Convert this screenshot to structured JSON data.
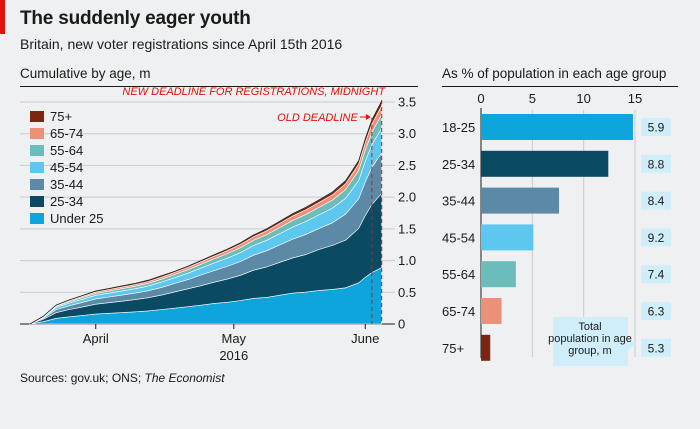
{
  "header": {
    "title": "The suddenly eager youth",
    "subtitle": "Britain, new voter registrations since April 15th 2016"
  },
  "source": {
    "prefix": "Sources: gov.uk; ONS; ",
    "publication": "The Economist"
  },
  "colors": {
    "accent": "#e3120b",
    "under25": "#0ea5dc",
    "a25_34": "#0b4a63",
    "a35_44": "#5c8aa6",
    "a45_54": "#5ec7ef",
    "a55_64": "#6dbcbc",
    "a65_74": "#ec9078",
    "a75plus": "#7d2412",
    "total_box": "#cfeef9"
  },
  "chart_data": [
    {
      "type": "area",
      "stacked": true,
      "title": "Cumulative by age, m",
      "xlabel": "2016",
      "ylabel": "",
      "ylim": [
        0,
        3.5
      ],
      "y_ticks": [
        "0",
        "0.5",
        "1.0",
        "1.5",
        "2.0",
        "2.5",
        "3.0",
        "3.5"
      ],
      "x_ticks": [
        "April",
        "May",
        "June"
      ],
      "x_day_range": [
        0,
        54
      ],
      "x_tick_days": [
        10,
        31,
        51
      ],
      "grid": true,
      "legend_position": "top-left",
      "legend": [
        "75+",
        "65-74",
        "55-64",
        "45-54",
        "35-44",
        "25-34",
        "Under 25"
      ],
      "annotations": {
        "new_deadline": "NEW DEADLINE FOR REGISTRATIONS, MIDNIGHT",
        "old_deadline": "OLD DEADLINE"
      },
      "annotation_days": {
        "new_deadline": 53.5,
        "old_deadline": 52
      },
      "x": [
        0,
        2,
        4,
        6,
        8,
        10,
        12,
        14,
        16,
        18,
        20,
        22,
        24,
        26,
        28,
        30,
        32,
        34,
        36,
        38,
        40,
        42,
        44,
        46,
        48,
        50,
        51,
        52,
        53,
        53.5
      ],
      "total": [
        0,
        0.12,
        0.3,
        0.38,
        0.45,
        0.52,
        0.56,
        0.6,
        0.64,
        0.69,
        0.76,
        0.83,
        0.91,
        0.99,
        1.08,
        1.18,
        1.28,
        1.39,
        1.5,
        1.62,
        1.74,
        1.86,
        1.96,
        2.1,
        2.28,
        2.6,
        2.95,
        3.25,
        3.45,
        3.55
      ],
      "series": [
        {
          "name": "Under 25",
          "share": [
            0.3,
            0.3,
            0.3,
            0.3,
            0.3,
            0.3,
            0.3,
            0.3,
            0.3,
            0.3,
            0.3,
            0.3,
            0.3,
            0.3,
            0.3,
            0.29,
            0.29,
            0.29,
            0.28,
            0.28,
            0.28,
            0.27,
            0.27,
            0.26,
            0.25,
            0.25,
            0.25,
            0.25,
            0.25,
            0.25
          ]
        },
        {
          "name": "25-34",
          "share": [
            0.3,
            0.3,
            0.3,
            0.3,
            0.3,
            0.3,
            0.3,
            0.3,
            0.3,
            0.3,
            0.3,
            0.31,
            0.31,
            0.31,
            0.31,
            0.31,
            0.31,
            0.32,
            0.32,
            0.32,
            0.32,
            0.32,
            0.33,
            0.33,
            0.33,
            0.33,
            0.33,
            0.33,
            0.33,
            0.33
          ]
        },
        {
          "name": "35-44",
          "share": [
            0.16,
            0.16,
            0.16,
            0.16,
            0.16,
            0.16,
            0.16,
            0.16,
            0.16,
            0.16,
            0.16,
            0.16,
            0.16,
            0.17,
            0.17,
            0.17,
            0.17,
            0.17,
            0.17,
            0.17,
            0.17,
            0.17,
            0.17,
            0.17,
            0.18,
            0.18,
            0.18,
            0.18,
            0.18,
            0.18
          ]
        },
        {
          "name": "45-54",
          "share": [
            0.11,
            0.11,
            0.11,
            0.11,
            0.11,
            0.11,
            0.11,
            0.11,
            0.11,
            0.11,
            0.11,
            0.11,
            0.11,
            0.11,
            0.11,
            0.11,
            0.11,
            0.11,
            0.11,
            0.11,
            0.11,
            0.11,
            0.11,
            0.11,
            0.11,
            0.11,
            0.11,
            0.11,
            0.11,
            0.11
          ]
        },
        {
          "name": "55-64",
          "share": [
            0.06,
            0.06,
            0.06,
            0.06,
            0.06,
            0.06,
            0.06,
            0.06,
            0.06,
            0.06,
            0.06,
            0.06,
            0.06,
            0.06,
            0.06,
            0.06,
            0.06,
            0.06,
            0.06,
            0.06,
            0.06,
            0.06,
            0.06,
            0.06,
            0.06,
            0.06,
            0.06,
            0.06,
            0.06,
            0.06
          ]
        },
        {
          "name": "65-74",
          "share": [
            0.04,
            0.04,
            0.04,
            0.04,
            0.04,
            0.04,
            0.04,
            0.04,
            0.04,
            0.04,
            0.04,
            0.04,
            0.04,
            0.04,
            0.04,
            0.04,
            0.04,
            0.04,
            0.04,
            0.04,
            0.04,
            0.04,
            0.04,
            0.04,
            0.04,
            0.04,
            0.04,
            0.04,
            0.04,
            0.04
          ]
        },
        {
          "name": "75+",
          "share": [
            0.03,
            0.03,
            0.03,
            0.03,
            0.03,
            0.03,
            0.03,
            0.03,
            0.03,
            0.03,
            0.03,
            0.02,
            0.02,
            0.02,
            0.02,
            0.02,
            0.02,
            0.02,
            0.02,
            0.02,
            0.02,
            0.02,
            0.02,
            0.02,
            0.02,
            0.02,
            0.02,
            0.02,
            0.02,
            0.02
          ]
        }
      ]
    },
    {
      "type": "bar",
      "orientation": "horizontal",
      "title": "As % of population in each age group",
      "xlim": [
        0,
        15
      ],
      "x_ticks": [
        "0",
        "5",
        "10",
        "15"
      ],
      "categories": [
        "18-25",
        "25-34",
        "35-44",
        "45-54",
        "55-64",
        "65-74",
        "75+"
      ],
      "values": [
        14.8,
        12.4,
        7.6,
        5.1,
        3.4,
        2.0,
        0.9
      ],
      "annotation": {
        "label": "Total population in age group, m",
        "values": [
          "5.9",
          "8.8",
          "8.4",
          "9.2",
          "7.4",
          "6.3",
          "5.3"
        ]
      }
    }
  ]
}
